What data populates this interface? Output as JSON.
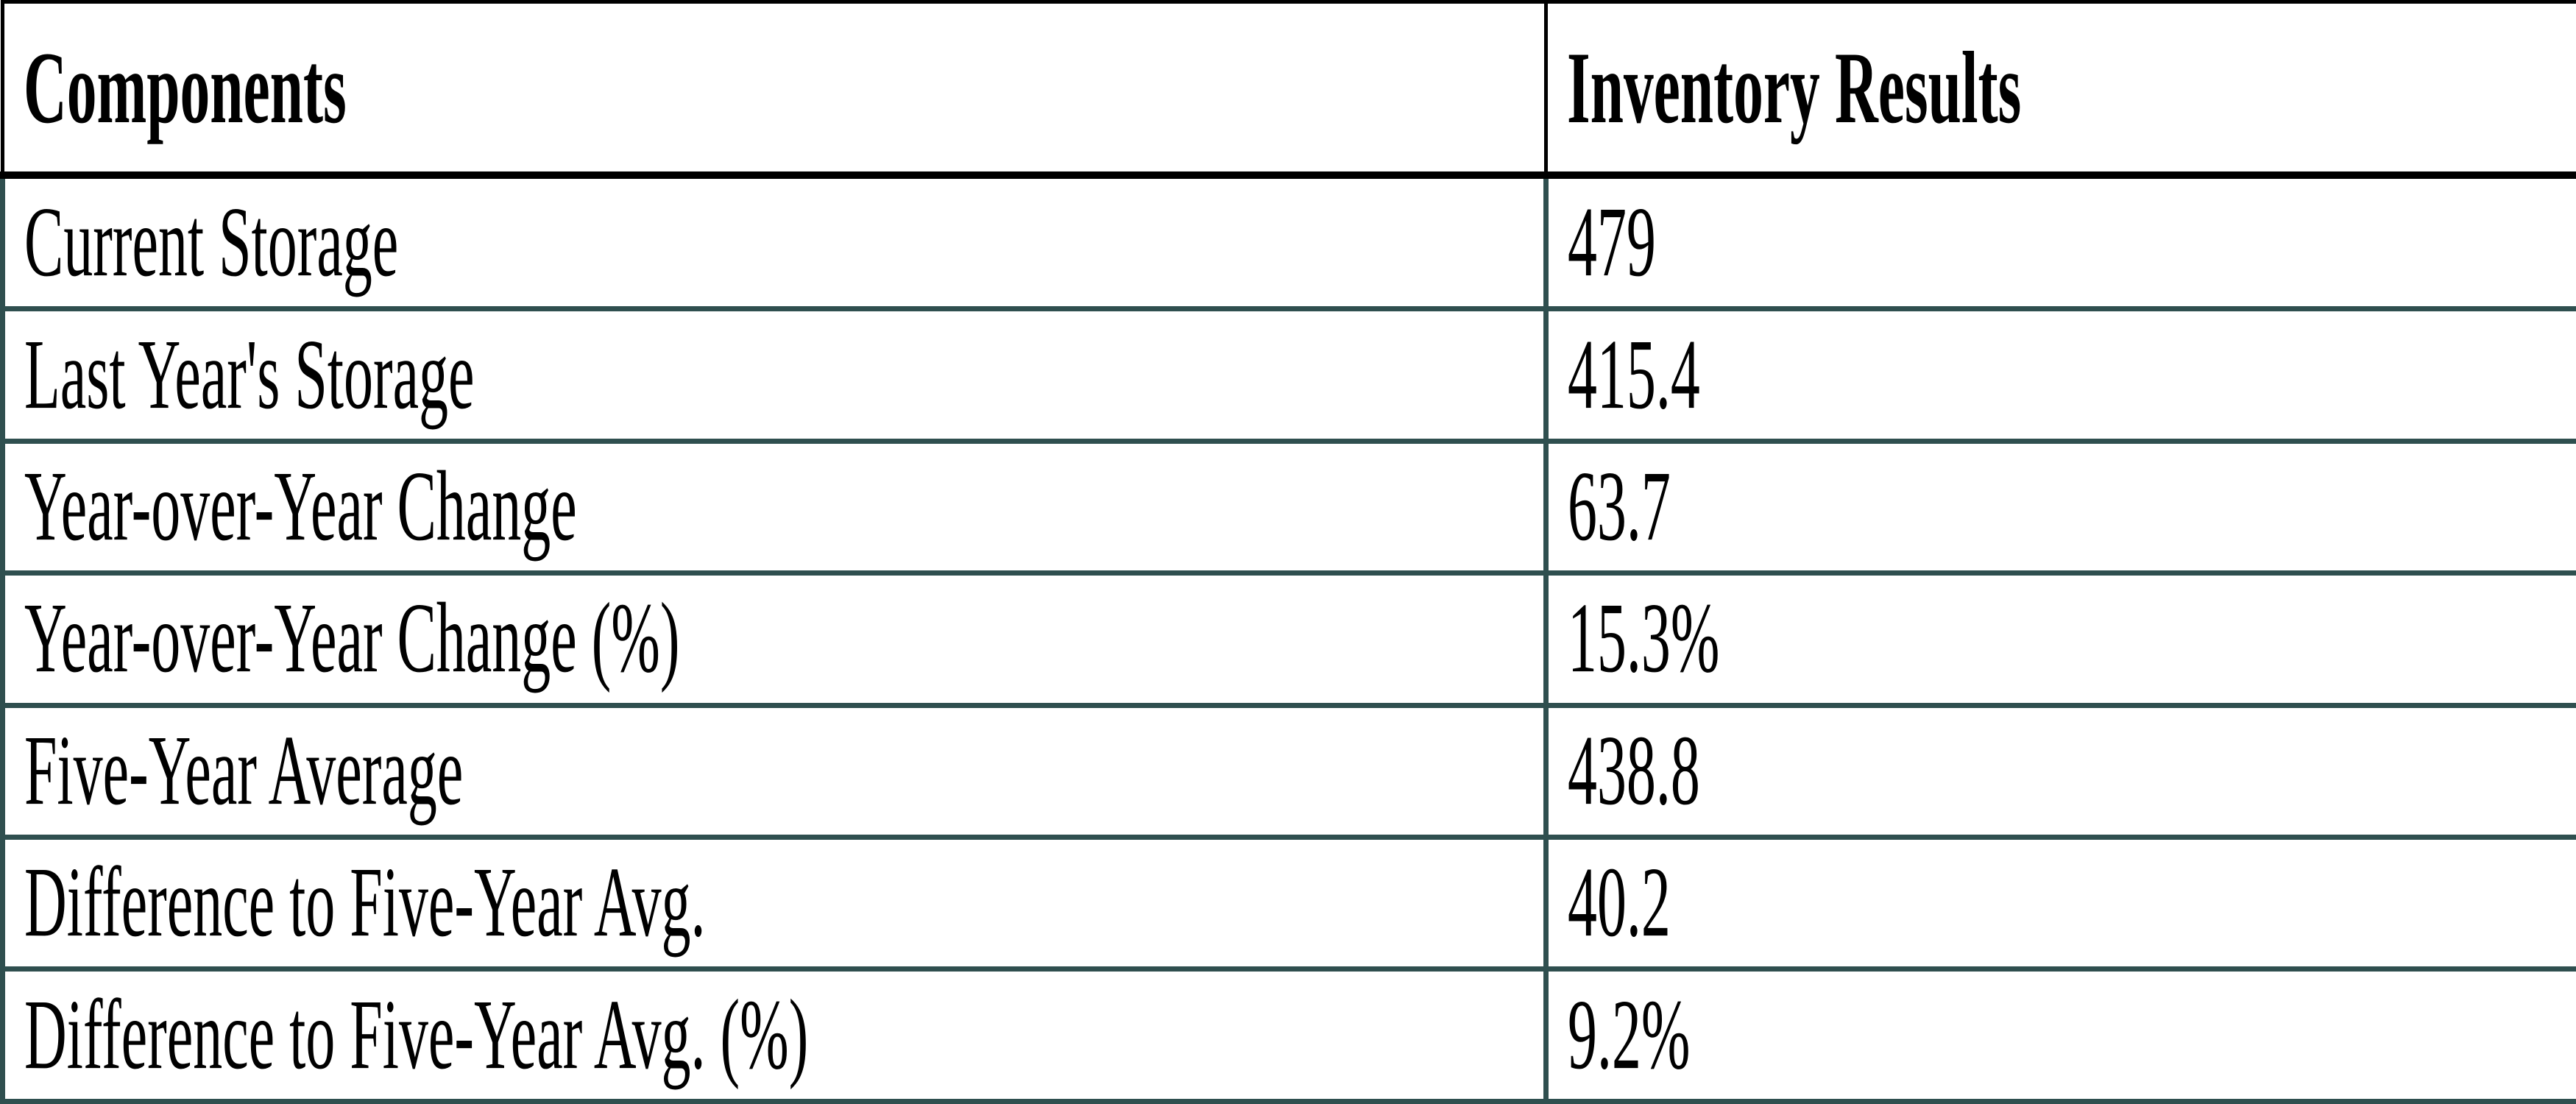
{
  "chart_data": {
    "type": "table",
    "columns": [
      "Components",
      "Inventory Results"
    ],
    "rows": [
      [
        "Current Storage",
        "479"
      ],
      [
        "Last Year's Storage",
        "415.4"
      ],
      [
        "Year-over-Year Change",
        "63.7"
      ],
      [
        "Year-over-Year Change (%)",
        "15.3%"
      ],
      [
        "Five-Year Average",
        "438.8"
      ],
      [
        "Difference to Five-Year Avg.",
        "40.2"
      ],
      [
        "Difference to Five-Year Avg. (%)",
        "9.2%"
      ]
    ],
    "layout": {
      "header_row_bold": true,
      "grid": "on"
    },
    "colors": {
      "header_border": "#000000",
      "body_border": "#2F4F4F",
      "text": "#000000",
      "background": "#FFFFFF"
    }
  }
}
